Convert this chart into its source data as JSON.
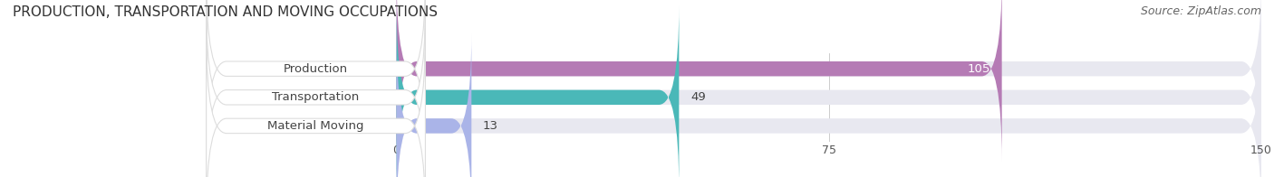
{
  "title": "PRODUCTION, TRANSPORTATION AND MOVING OCCUPATIONS",
  "source": "Source: ZipAtlas.com",
  "categories": [
    "Production",
    "Transportation",
    "Material Moving"
  ],
  "values": [
    105,
    49,
    13
  ],
  "bar_colors": [
    "#b57bb5",
    "#4ab8b8",
    "#aab4e8"
  ],
  "bg_track_color": "#e8e8f0",
  "xlim": [
    0,
    150
  ],
  "xticks": [
    0,
    75,
    150
  ],
  "background_color": "#ffffff",
  "title_fontsize": 11,
  "source_fontsize": 9,
  "label_fontsize": 9.5,
  "tick_fontsize": 9,
  "bar_height": 0.52,
  "bar_gap": 1.0,
  "label_pill_color": "#ffffff",
  "label_pill_edge": "#dddddd"
}
